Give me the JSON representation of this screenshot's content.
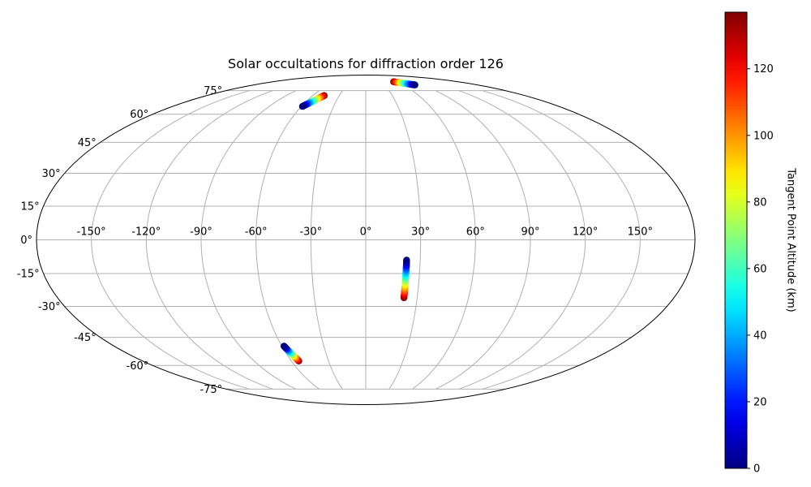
{
  "chart_data": {
    "type": "scatter",
    "projection": "mollweide",
    "title": "Solar occultations for diffraction order 126",
    "grid": true,
    "lon_ticks": [
      "-150°",
      "-120°",
      "-90°",
      "-60°",
      "-30°",
      "0°",
      "30°",
      "60°",
      "90°",
      "120°",
      "150°"
    ],
    "lat_ticks": [
      "-75°",
      "-60°",
      "-45°",
      "-30°",
      "-15°",
      "0°",
      "15°",
      "30°",
      "45°",
      "60°",
      "75°"
    ],
    "colormap": "jet",
    "colorbar": {
      "label": "Tangent Point Altitude (km)",
      "range": [
        0,
        137
      ],
      "ticks": [
        "0",
        "20",
        "40",
        "60",
        "80",
        "100",
        "120"
      ],
      "placement": "right"
    },
    "series": [
      {
        "lon_start": -59.0,
        "lat_start": 64.6,
        "lon_end": -47.0,
        "lat_end": 71.5,
        "alt_start": 0,
        "alt_end": 137
      },
      {
        "lon_start": 79.0,
        "lat_start": 79.3,
        "lon_end": 54.0,
        "lat_end": 82.0,
        "alt_start": 0,
        "alt_end": 137
      },
      {
        "lon_start": 22.5,
        "lat_start": -9.0,
        "lon_end": 22.3,
        "lat_end": -26.0,
        "alt_start": 0,
        "alt_end": 137
      },
      {
        "lon_start": -58.5,
        "lat_start": -49.5,
        "lon_end": -54.0,
        "lat_end": -57.5,
        "alt_start": 0,
        "alt_end": 137
      }
    ]
  }
}
